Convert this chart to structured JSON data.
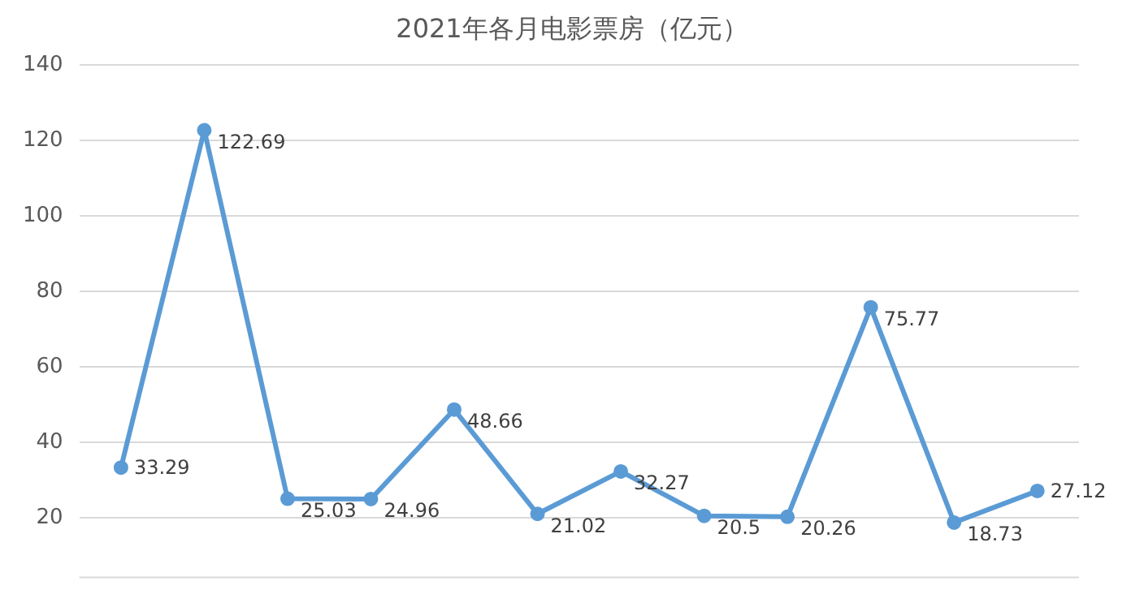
{
  "chart_data": {
    "type": "line",
    "title": "2021年各月电影票房（亿元）",
    "categories": [
      null,
      null,
      null,
      null,
      null,
      null,
      null,
      null,
      null,
      null,
      null,
      null
    ],
    "series": [
      {
        "color": "#5b9bd5",
        "values": [
          33.29,
          122.69,
          25.03,
          24.96,
          48.66,
          21.02,
          32.27,
          20.5,
          20.26,
          75.77,
          18.73,
          27.12
        ]
      }
    ],
    "ylim": [
      4,
      140
    ],
    "yticks": [
      20,
      40,
      60,
      80,
      100,
      120,
      140
    ],
    "grid": "y",
    "legend": false,
    "marker": "circle",
    "data_labels": true,
    "tick_labels": "y"
  }
}
